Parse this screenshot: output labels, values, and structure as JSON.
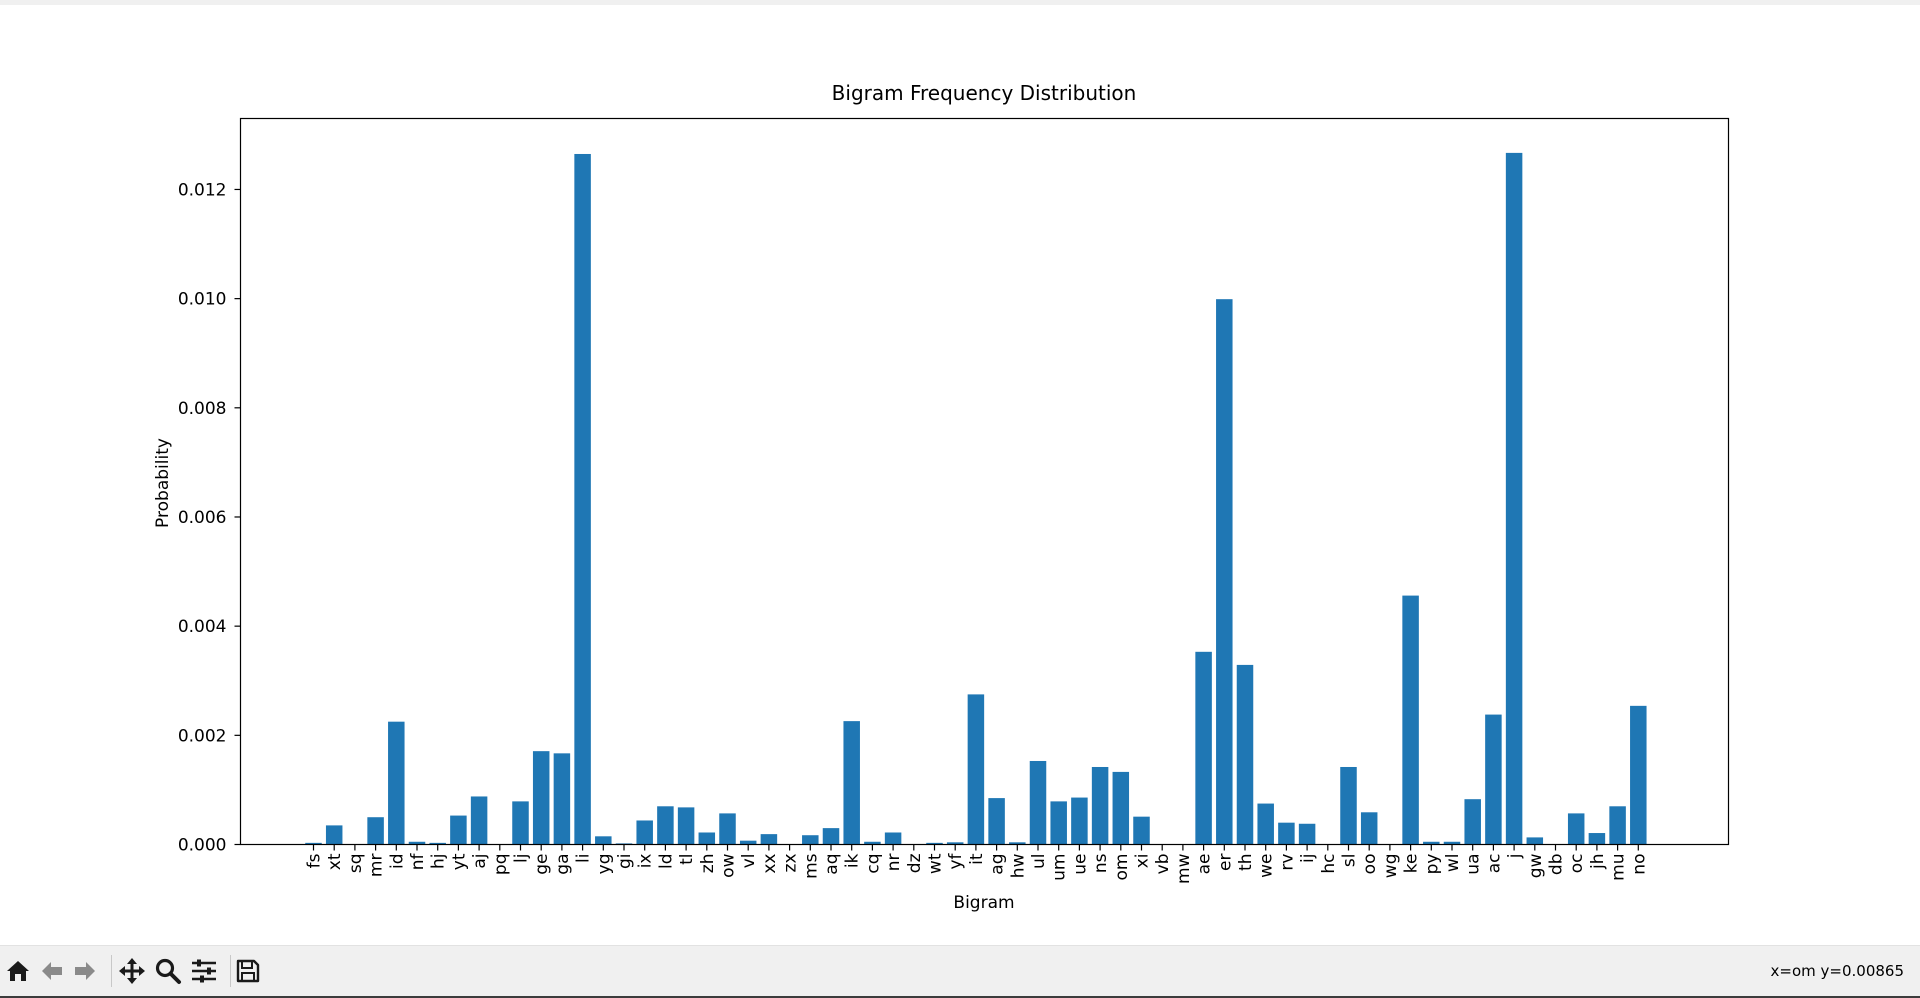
{
  "window": {
    "coords_readout": "x=om y=0.00865"
  },
  "toolbar": {
    "buttons": [
      {
        "name": "home-icon"
      },
      {
        "name": "back-arrow-icon"
      },
      {
        "name": "forward-arrow-icon"
      },
      {
        "name": "pan-icon"
      },
      {
        "name": "zoom-icon"
      },
      {
        "name": "configure-subplots-icon"
      },
      {
        "name": "save-icon"
      }
    ]
  },
  "chart_data": {
    "type": "bar",
    "title": "Bigram Frequency Distribution",
    "xlabel": "Bigram",
    "ylabel": "Probability",
    "ylim": [
      0,
      0.0133
    ],
    "yticks": [
      "0.000",
      "0.002",
      "0.004",
      "0.006",
      "0.008",
      "0.010",
      "0.012"
    ],
    "grid": false,
    "bar_color": "#1f77b4",
    "categories": [
      "fs",
      "xt",
      "sq",
      "mr",
      "id",
      "nf",
      "hj",
      "yt",
      "aj",
      "pq",
      "lj",
      "ge",
      "ga",
      "li",
      "yg",
      "gi",
      "ix",
      "ld",
      "tl",
      "zh",
      "ow",
      "vl",
      "xx",
      "zx",
      "ms",
      "aq",
      "ik",
      "cq",
      "nr",
      "dz",
      "wt",
      "yf",
      "it",
      "ag",
      "hw",
      "ul",
      "um",
      "ue",
      "ns",
      "om",
      "xi",
      "vb",
      "mw",
      "ae",
      "er",
      "th",
      "we",
      "rv",
      "ij",
      "hc",
      "sl",
      "oo",
      "wg",
      "ke",
      "py",
      "wl",
      "ua",
      "ac",
      "j",
      "gw",
      "db",
      "oc",
      "jh",
      "mu",
      "no"
    ],
    "values": [
      3e-05,
      0.00035,
      0.0,
      0.0005,
      0.00225,
      5e-05,
      3e-05,
      0.00053,
      0.00088,
      0.0,
      0.00079,
      0.00171,
      0.00167,
      0.01265,
      0.00015,
      2e-05,
      0.00044,
      0.0007,
      0.00068,
      0.00022,
      0.00057,
      7e-05,
      0.00019,
      0.0,
      0.00017,
      0.0003,
      0.00226,
      5e-05,
      0.00022,
      0.0,
      3e-05,
      4e-05,
      0.00275,
      0.00085,
      4e-05,
      0.00153,
      0.00079,
      0.00086,
      0.00142,
      0.00133,
      0.00051,
      0.0,
      0.0,
      0.00353,
      0.00999,
      0.00329,
      0.00075,
      0.0004,
      0.00038,
      0.0,
      0.00142,
      0.00059,
      0.0,
      0.00456,
      5e-05,
      5e-05,
      0.00083,
      0.00238,
      0.01267,
      0.00013,
      0.0,
      0.00057,
      0.00021,
      0.0007,
      0.00254
    ]
  }
}
